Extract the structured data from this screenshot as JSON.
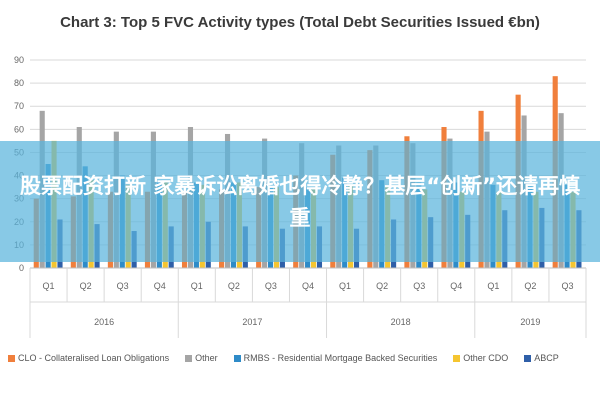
{
  "chart_data": {
    "type": "bar",
    "title": "Chart 3: Top 5 FVC Activity types (Total Debt Securities Issued €bn)",
    "xlabel": "",
    "ylabel": "",
    "ylim": [
      0,
      90
    ],
    "yticks": [
      0,
      10,
      20,
      30,
      40,
      50,
      60,
      70,
      80,
      90
    ],
    "grid": true,
    "legend_position": "bottom",
    "categories": [
      "Q1",
      "Q2",
      "Q3",
      "Q4",
      "Q1",
      "Q2",
      "Q3",
      "Q4",
      "Q1",
      "Q2",
      "Q3",
      "Q4",
      "Q1",
      "Q2",
      "Q3"
    ],
    "years": [
      {
        "label": "2016",
        "span": 4
      },
      {
        "label": "2017",
        "span": 4
      },
      {
        "label": "2018",
        "span": 4
      },
      {
        "label": "2019",
        "span": 3
      }
    ],
    "series": [
      {
        "name": "CLO - Collateralised Loan Obligations",
        "color": "#f07f3c",
        "values": [
          30,
          31,
          33,
          33,
          33,
          34,
          35,
          40,
          49,
          51,
          57,
          61,
          68,
          75,
          83
        ]
      },
      {
        "name": "Other",
        "color": "#a5a5a5",
        "values": [
          68,
          61,
          59,
          59,
          61,
          58,
          56,
          54,
          53,
          53,
          54,
          56,
          59,
          66,
          67
        ]
      },
      {
        "name": "RMBS - Residential Mortgage Backed Securities",
        "color": "#2e8bc8",
        "values": [
          45,
          44,
          40,
          38,
          37,
          37,
          35,
          35,
          39,
          38,
          37,
          37,
          36,
          36,
          36
        ]
      },
      {
        "name": "Other CDO",
        "color": "#f5c530",
        "values": [
          55,
          38,
          36,
          37,
          36,
          37,
          35,
          34,
          36,
          35,
          34,
          33,
          33,
          33,
          33
        ]
      },
      {
        "name": "ABCP",
        "color": "#2f5fa8",
        "values": [
          21,
          19,
          16,
          18,
          20,
          18,
          17,
          18,
          17,
          21,
          22,
          23,
          25,
          26,
          25
        ]
      }
    ]
  },
  "banner": {
    "text": "股票配资打新 家暴诉讼离婚也得冷静？基层“创新”还请再慎重"
  }
}
